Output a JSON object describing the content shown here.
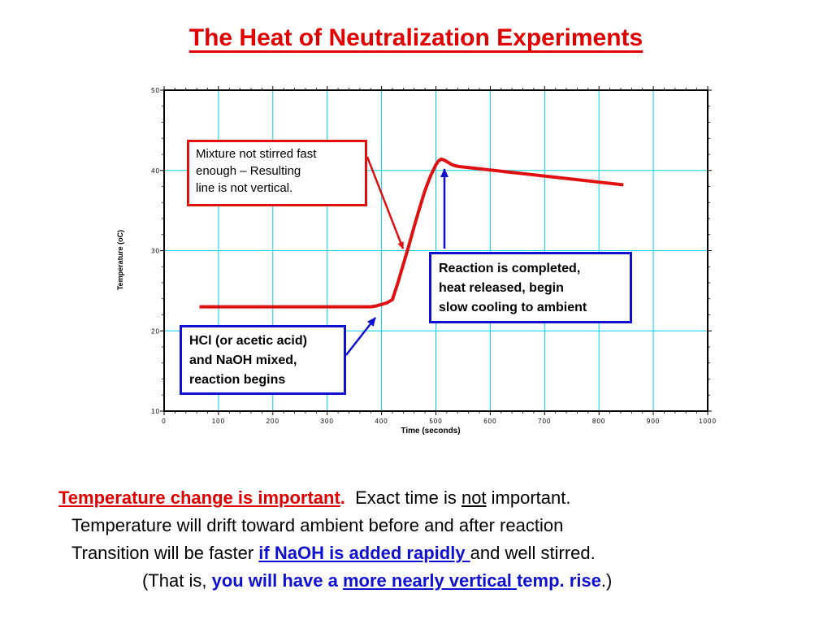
{
  "title": "The Heat of Neutralization Experiments",
  "chart_data": {
    "type": "line",
    "xlabel": "Time (seconds)",
    "ylabel": "Temperature (oC)",
    "xlim": [
      0,
      1000
    ],
    "ylim": [
      10,
      50
    ],
    "x_ticks": [
      "0",
      "100",
      "200",
      "300",
      "400",
      "500",
      "600",
      "700",
      "800",
      "900",
      "1000"
    ],
    "y_ticks": [
      "10",
      "20",
      "30",
      "40",
      "50"
    ],
    "grid": true,
    "line_color": "#e01010",
    "series": [
      {
        "x": [
          65,
          100,
          200,
          300,
          380,
          390,
          400,
          410,
          420,
          430,
          440,
          450,
          460,
          470,
          480,
          490,
          500,
          505,
          510,
          515,
          520,
          530,
          540,
          845
        ],
        "y": [
          23.0,
          23.0,
          23.0,
          23.0,
          23.0,
          23.1,
          23.3,
          23.5,
          23.9,
          26.0,
          28.3,
          30.6,
          33.0,
          35.3,
          37.5,
          39.3,
          40.7,
          41.2,
          41.4,
          41.3,
          41.1,
          40.7,
          40.5,
          38.2
        ]
      }
    ],
    "annotations": {
      "mixing_note": {
        "lines": [
          "Mixture not stirred fast",
          "enough – Resulting",
          "line is not vertical."
        ],
        "border_color": "#e01010"
      },
      "completed_note": {
        "lines": [
          "Reaction is completed,",
          "heat released, begin",
          "slow cooling to ambient"
        ],
        "border_color": "#1010d0"
      },
      "mixed_note": {
        "lines": [
          "HCl (or acetic acid)",
          "and NaOH mixed,",
          "reaction begins"
        ],
        "border_color": "#1010d0"
      }
    }
  },
  "notes": {
    "line1_red": "Temperature change is important",
    "line1_red_period": ".",
    "line1_a": "  Exact time is ",
    "line1_not": "not",
    "line1_b": " important.",
    "line2": "Temperature will drift toward ambient before and after reaction",
    "line3_a": "Transition will be faster ",
    "line3_blue": "if NaOH is added rapidly ",
    "line3_b": "and well stirred.",
    "line4_a": "(That is, ",
    "line4_blue1": "you will have a ",
    "line4_blue2": "more nearly vertical ",
    "line4_blue3": "temp. rise",
    "line4_b": ".)"
  }
}
